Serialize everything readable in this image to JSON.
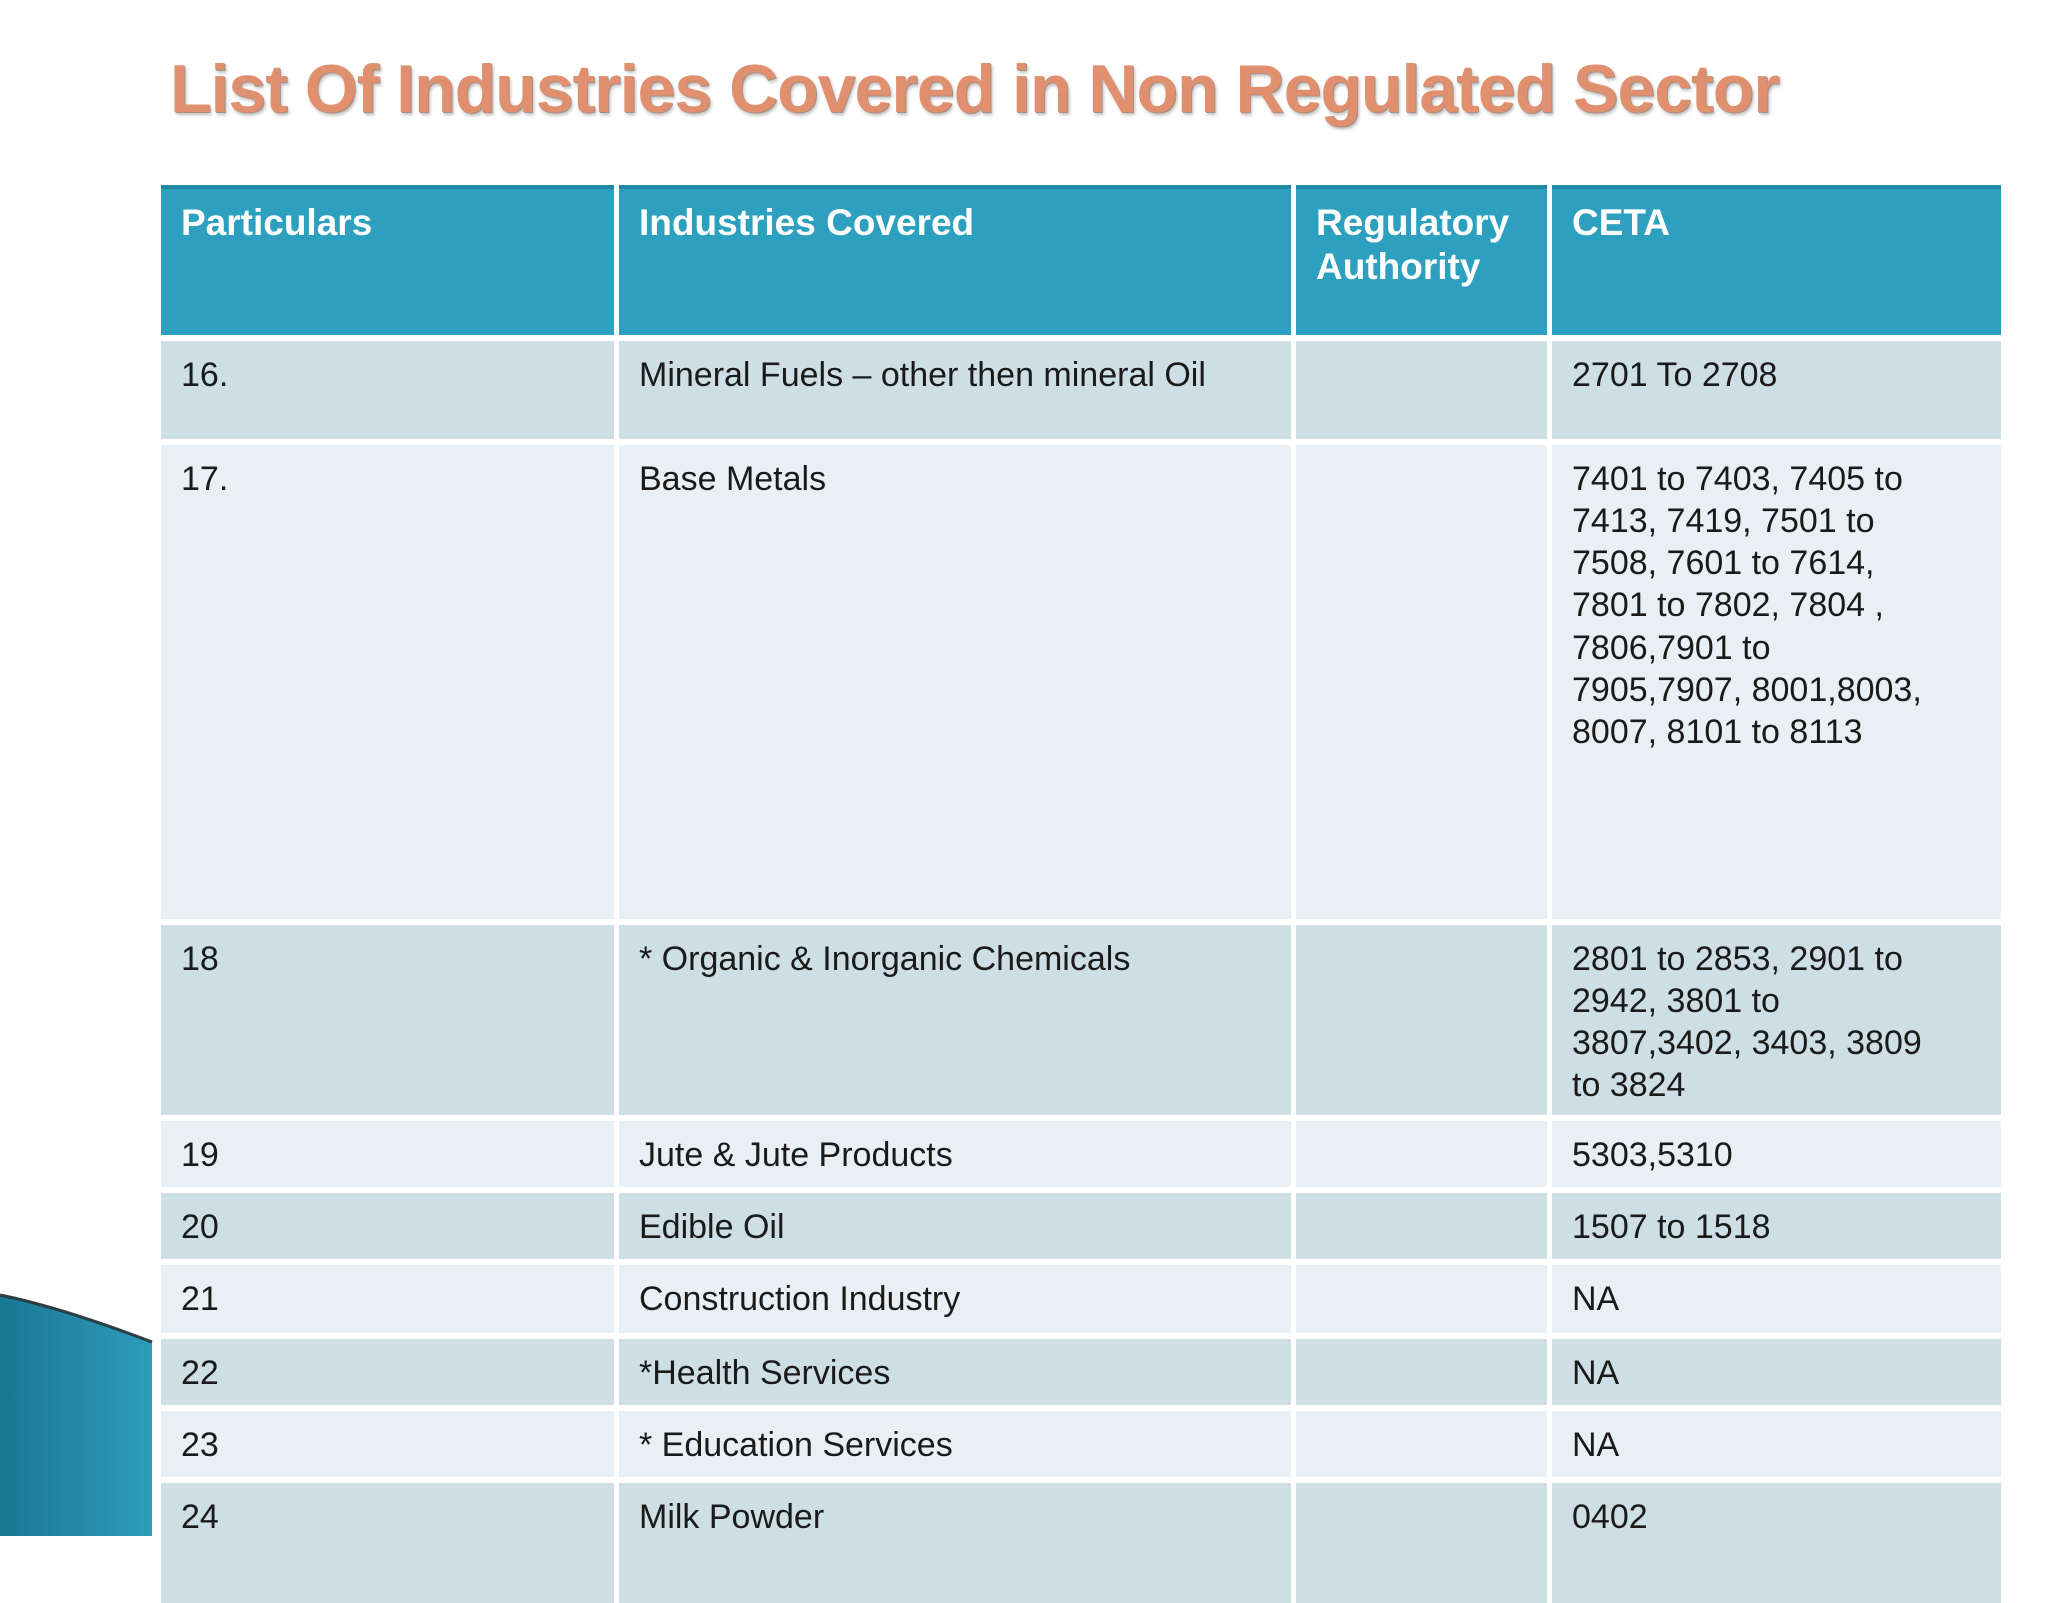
{
  "slide": {
    "title": "List Of Industries Covered in Non Regulated Sector"
  },
  "table": {
    "columns": [
      {
        "key": "particulars",
        "label": "Particulars"
      },
      {
        "key": "industries_covered",
        "label": "Industries Covered"
      },
      {
        "key": "regulatory_authority",
        "label": "Regulatory Authority"
      },
      {
        "key": "ceta",
        "label": "CETA"
      }
    ],
    "rows": [
      {
        "particulars": "16.",
        "industries_covered": "Mineral Fuels – other then mineral Oil",
        "regulatory_authority": "",
        "ceta": "2701 To 2708"
      },
      {
        "particulars": "17.",
        "industries_covered": "Base Metals",
        "regulatory_authority": "",
        "ceta": "7401 to 7403, 7405 to 7413, 7419, 7501 to 7508, 7601 to 7614, 7801 to 7802, 7804 , 7806,7901 to 7905,7907, 8001,8003, 8007, 8101 to 8113"
      },
      {
        "particulars": "18",
        "industries_covered": "* Organic & Inorganic Chemicals",
        "regulatory_authority": "",
        "ceta": "2801 to 2853, 2901 to 2942, 3801 to 3807,3402, 3403, 3809 to 3824"
      },
      {
        "particulars": "19",
        "industries_covered": "Jute & Jute Products",
        "regulatory_authority": "",
        "ceta": "5303,5310"
      },
      {
        "particulars": "20",
        "industries_covered": "Edible Oil",
        "regulatory_authority": "",
        "ceta": "1507 to 1518"
      },
      {
        "particulars": "21",
        "industries_covered": "Construction Industry",
        "regulatory_authority": "",
        "ceta": "NA"
      },
      {
        "particulars": "22",
        "industries_covered": "*Health Services",
        "regulatory_authority": "",
        "ceta": "NA"
      },
      {
        "particulars": "23",
        "industries_covered": "* Education Services",
        "regulatory_authority": "",
        "ceta": "NA"
      },
      {
        "particulars": "24",
        "industries_covered": "Milk Powder",
        "regulatory_authority": "",
        "ceta": "0402"
      }
    ]
  },
  "colors": {
    "title-color": "#E0906F",
    "header-bg": "#2CA0BE",
    "header-text": "#FFFFFF",
    "row-odd-bg": "#CDDEE5",
    "row-even-bg": "#E9F0F5",
    "body-text": "#1A1A1A",
    "wedge-dark": "#1A7693",
    "wedge-light": "#2E9CBB"
  }
}
